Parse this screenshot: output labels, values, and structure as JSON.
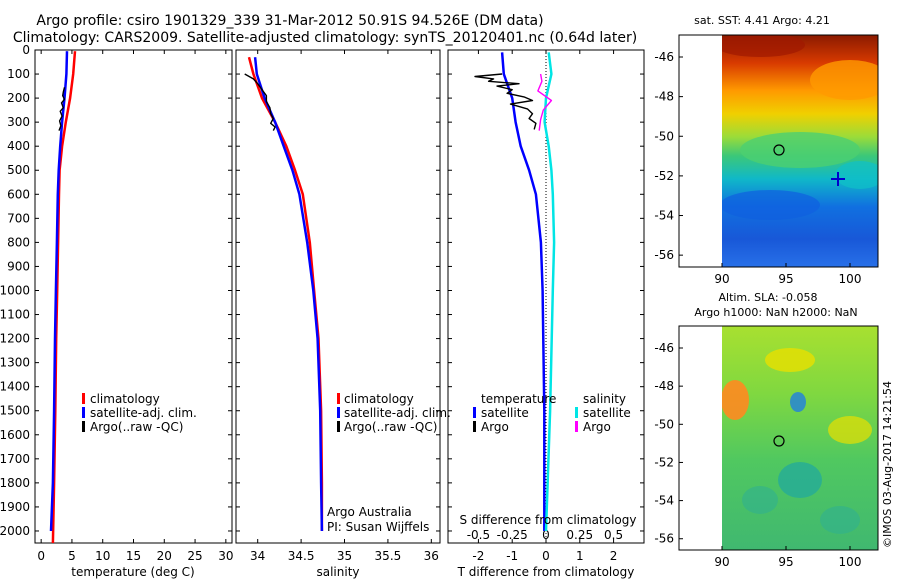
{
  "header": {
    "line1": "Argo profile: csiro 1901329_339 31-Mar-2012 50.91S 94.526E (DM data)",
    "line2": "Climatology: CARS2009. Satellite-adjusted climatology: synTS_20120401.nc (0.64d later)"
  },
  "colors": {
    "climatology": "#ff0000",
    "satellite": "#0000ff",
    "argo": "#000000",
    "sat_salinity": "#00e5e5",
    "argo_salinity": "#ff00ff"
  },
  "chart_data": [
    {
      "type": "line",
      "xlabel": "temperature (deg C)",
      "ylabel": "",
      "xlim": [
        -1,
        31
      ],
      "ylim": [
        2050,
        0
      ],
      "xticks": [
        0,
        5,
        10,
        15,
        20,
        25,
        30
      ],
      "yticks": [
        0,
        100,
        200,
        300,
        400,
        500,
        600,
        700,
        800,
        900,
        1000,
        1100,
        1200,
        1300,
        1400,
        1500,
        1600,
        1700,
        1800,
        1900,
        2000
      ],
      "legend": [
        "climatology",
        "satellite-adj. clim.",
        "Argo(..raw -QC)"
      ],
      "series": [
        {
          "name": "climatology",
          "color": "#ff0000",
          "x": [
            5.5,
            5.2,
            4.7,
            4.0,
            3.4,
            3.0,
            2.9,
            2.75,
            2.6,
            2.45,
            2.3,
            2.1,
            1.9
          ],
          "y": [
            5,
            100,
            200,
            300,
            400,
            500,
            600,
            800,
            1000,
            1200,
            1500,
            1800,
            2050
          ]
        },
        {
          "name": "satellite-adj. clim.",
          "color": "#0000ff",
          "x": [
            4.2,
            4.1,
            3.8,
            3.4,
            3.1,
            2.85,
            2.7,
            2.55,
            2.4,
            2.25,
            2.1,
            1.9,
            1.6
          ],
          "y": [
            5,
            100,
            200,
            300,
            400,
            500,
            600,
            800,
            1000,
            1200,
            1500,
            1800,
            2000
          ]
        },
        {
          "name": "Argo(..raw -QC)",
          "color": "#000000",
          "x": [
            3.8,
            3.6,
            3.5,
            3.8,
            3.3,
            3.6,
            3.1,
            3.4,
            3.0,
            3.2,
            2.9
          ],
          "y": [
            155,
            175,
            190,
            205,
            220,
            240,
            255,
            275,
            295,
            315,
            335
          ]
        }
      ]
    },
    {
      "type": "line",
      "xlabel": "salinity",
      "ylabel": "",
      "xlim": [
        33.75,
        36.1
      ],
      "ylim": [
        2050,
        0
      ],
      "xticks": [
        34,
        34.5,
        35,
        35.5,
        36
      ],
      "xticklabels": [
        "34",
        "34.5",
        "35",
        "35.5",
        "36"
      ],
      "legend": [
        "climatology",
        "satellite-adj. clim.",
        "Argo(..raw -QC)"
      ],
      "annotations": [
        "Argo Australia",
        "PI: Susan Wijffels"
      ],
      "series": [
        {
          "name": "climatology",
          "color": "#ff0000",
          "x": [
            33.9,
            33.95,
            34.05,
            34.2,
            34.33,
            34.43,
            34.52,
            34.6,
            34.65,
            34.7,
            34.73,
            34.74,
            34.74
          ],
          "y": [
            30,
            100,
            200,
            300,
            400,
            500,
            600,
            800,
            1000,
            1200,
            1500,
            1800,
            2000
          ]
        },
        {
          "name": "satellite-adj. clim.",
          "color": "#0000ff",
          "x": [
            33.97,
            33.99,
            34.08,
            34.2,
            34.3,
            34.4,
            34.48,
            34.57,
            34.64,
            34.69,
            34.72,
            34.73,
            34.74
          ],
          "y": [
            30,
            100,
            200,
            300,
            400,
            500,
            600,
            800,
            1000,
            1200,
            1500,
            1800,
            2000
          ]
        },
        {
          "name": "Argo(..raw -QC)",
          "color": "#000000",
          "x": [
            33.85,
            33.95,
            34.0,
            34.05,
            34.1,
            34.1,
            34.14,
            34.15,
            34.18,
            34.15,
            34.2,
            34.18
          ],
          "y": [
            100,
            120,
            140,
            165,
            190,
            215,
            240,
            265,
            285,
            305,
            320,
            335
          ]
        }
      ]
    },
    {
      "type": "line",
      "xlabel": "T difference from climatology",
      "xlabel_top": "S difference from climatology",
      "ylabel": "",
      "xlim": [
        -2.9,
        2.9
      ],
      "xlim_top": [
        -0.725,
        0.725
      ],
      "ylim": [
        2050,
        0
      ],
      "xticks": [
        -2,
        -1,
        0,
        1,
        2
      ],
      "xticks_top": [
        -0.5,
        -0.25,
        0,
        0.25,
        0.5
      ],
      "xticklabels_top": [
        "-0.5",
        "-0.25",
        "0",
        "0.25",
        "0.5"
      ],
      "legend_titles": [
        "temperature",
        "salinity"
      ],
      "legend": [
        "satellite",
        "Argo",
        "satellite",
        "Argo"
      ],
      "series": [
        {
          "name": "satellite",
          "axis": "T",
          "color": "#0000ff",
          "x": [
            -1.3,
            -1.25,
            -1.0,
            -0.9,
            -0.75,
            -0.5,
            -0.3,
            -0.15,
            -0.1,
            -0.05,
            -0.05
          ],
          "y": [
            10,
            100,
            200,
            300,
            400,
            500,
            600,
            800,
            1000,
            1500,
            2000
          ]
        },
        {
          "name": "Argo",
          "axis": "T",
          "color": "#000000",
          "x": [
            -1.3,
            -2.1,
            -1.55,
            -1.7,
            -0.8,
            -1.45,
            -1.0,
            -1.15,
            -0.65,
            -0.4,
            -1.05,
            -0.55,
            -0.4,
            -0.5,
            -0.3,
            -0.35
          ],
          "y": [
            100,
            110,
            120,
            130,
            140,
            150,
            165,
            180,
            195,
            210,
            225,
            245,
            265,
            285,
            305,
            330
          ]
        },
        {
          "name": "satellite",
          "axis": "S",
          "color": "#00e5e5",
          "x": [
            0.02,
            0.04,
            0.0,
            -0.01,
            0.02,
            0.04,
            0.05,
            0.06,
            0.05,
            0.03,
            0.0
          ],
          "y": [
            10,
            100,
            200,
            300,
            400,
            500,
            600,
            800,
            1000,
            1500,
            2000
          ]
        },
        {
          "name": "Argo",
          "axis": "S",
          "color": "#ff00ff",
          "x": [
            -0.04,
            -0.03,
            -0.06,
            0.04,
            -0.02,
            -0.04,
            -0.05
          ],
          "y": [
            100,
            130,
            170,
            210,
            250,
            290,
            335
          ]
        }
      ]
    }
  ],
  "maps": {
    "top": {
      "title": "sat. SST: 4.41 Argo: 4.21",
      "xticks": [
        "90",
        "95",
        "100"
      ],
      "yticks": [
        "-46",
        "-48",
        "-50",
        "-52",
        "-54",
        "-56"
      ]
    },
    "bottom": {
      "title_line1": "Altim. SLA: -0.058",
      "title_line2": "Argo h1000: NaN h2000: NaN",
      "xticks": [
        "90",
        "95",
        "100"
      ],
      "yticks": [
        "-46",
        "-48",
        "-50",
        "-52",
        "-54",
        "-56"
      ]
    }
  },
  "footer": {
    "stamp": "©IMOS 03-Aug-2017 14:21:54"
  }
}
